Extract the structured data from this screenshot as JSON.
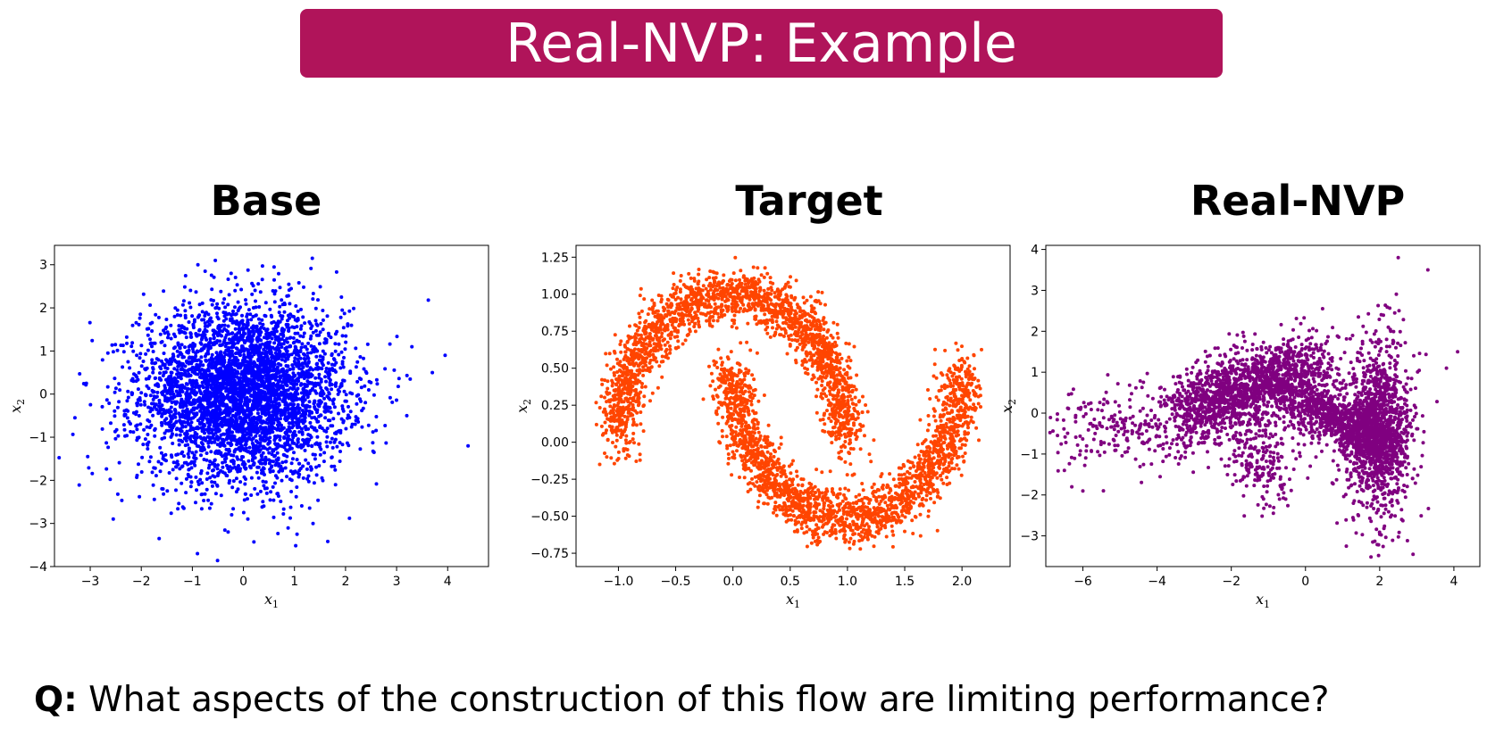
{
  "slide": {
    "title": "Real-NVP: Example",
    "title_bg": "#b0145a",
    "question_prefix": "Q:",
    "question_text": " What aspects of the construction of this flow are limiting performance?"
  },
  "chart_data": [
    {
      "type": "scatter",
      "title": "Base",
      "color": "#0000ff",
      "xlabel": "x1",
      "ylabel": "x2",
      "xlim": [
        -3.7,
        4.8
      ],
      "ylim": [
        -4.0,
        3.45
      ],
      "xticks": [
        -3,
        -2,
        -1,
        0,
        1,
        2,
        3,
        4
      ],
      "xtick_labels": [
        "−3",
        "−2",
        "−1",
        "0",
        "1",
        "2",
        "3",
        "4"
      ],
      "yticks": [
        -4,
        -3,
        -2,
        -1,
        0,
        1,
        2,
        3
      ],
      "ytick_labels": [
        "−4",
        "−3",
        "−2",
        "−1",
        "0",
        "1",
        "2",
        "3"
      ],
      "distribution": "standard Gaussian, ~5000 samples",
      "points": [
        [
          -3.3,
          -0.55
        ],
        [
          -3.05,
          -1.45
        ],
        [
          4.4,
          -1.2
        ],
        [
          3.95,
          0.9
        ],
        [
          3.7,
          0.5
        ],
        [
          3.3,
          1.1
        ],
        [
          3.2,
          -0.5
        ],
        [
          -0.9,
          -3.7
        ],
        [
          -1.65,
          -3.35
        ],
        [
          -0.3,
          -3.2
        ],
        [
          1.05,
          -3.25
        ],
        [
          -2.55,
          -2.9
        ],
        [
          -0.55,
          3.1
        ],
        [
          1.35,
          3.15
        ],
        [
          0.6,
          2.95
        ],
        [
          -0.75,
          2.85
        ]
      ]
    },
    {
      "type": "scatter",
      "title": "Target",
      "color": "#ff4500",
      "xlabel": "x1",
      "ylabel": "x2",
      "xlim": [
        -1.37,
        2.42
      ],
      "ylim": [
        -0.84,
        1.33
      ],
      "xticks": [
        -1.0,
        -0.5,
        0.0,
        0.5,
        1.0,
        1.5,
        2.0
      ],
      "xtick_labels": [
        "−1.0",
        "−0.5",
        "0.0",
        "0.5",
        "1.0",
        "1.5",
        "2.0"
      ],
      "yticks": [
        -0.75,
        -0.5,
        -0.25,
        0.0,
        0.25,
        0.5,
        0.75,
        1.0,
        1.25
      ],
      "ytick_labels": [
        "−0.75",
        "−0.50",
        "−0.25",
        "0.00",
        "0.25",
        "0.50",
        "0.75",
        "1.00",
        "1.25"
      ],
      "distribution": "two moons, ~5000 samples",
      "points": []
    },
    {
      "type": "scatter",
      "title": "Real-NVP",
      "color": "#800080",
      "xlabel": "x1",
      "ylabel": "x2",
      "xlim": [
        -7.0,
        4.7
      ],
      "ylim": [
        -3.75,
        4.1
      ],
      "xticks": [
        -6,
        -4,
        -2,
        0,
        2,
        4
      ],
      "xtick_labels": [
        "−6",
        "−4",
        "−2",
        "0",
        "2",
        "4"
      ],
      "yticks": [
        -3,
        -2,
        -1,
        0,
        1,
        2,
        3,
        4
      ],
      "ytick_labels": [
        "−3",
        "−2",
        "−1",
        "0",
        "1",
        "2",
        "3",
        "4"
      ],
      "distribution": "learned flow samples, ~5000 samples",
      "points": [
        [
          -6.0,
          -1.9
        ],
        [
          -6.3,
          -1.8
        ],
        [
          -6.5,
          -1.4
        ],
        [
          -5.9,
          -0.8
        ],
        [
          3.3,
          3.5
        ],
        [
          2.5,
          3.8
        ],
        [
          2.9,
          -3.45
        ],
        [
          1.1,
          -3.25
        ],
        [
          3.8,
          1.1
        ],
        [
          4.1,
          1.5
        ]
      ]
    }
  ]
}
